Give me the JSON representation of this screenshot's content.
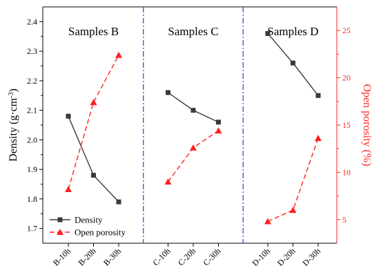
{
  "chart_data": {
    "type": "line",
    "categories": [
      "B-10h",
      "B-20h",
      "B-30h",
      "C-10h",
      "C-20h",
      "C-30h",
      "D-10h",
      "D-20h",
      "D-30h"
    ],
    "groups": [
      {
        "label": "Samples B",
        "categories": [
          "B-10h",
          "B-20h",
          "B-30h"
        ]
      },
      {
        "label": "Samples C",
        "categories": [
          "C-10h",
          "C-20h",
          "C-30h"
        ]
      },
      {
        "label": "Samples D",
        "categories": [
          "D-10h",
          "D-20h",
          "D-30h"
        ]
      }
    ],
    "series": [
      {
        "name": "Density",
        "axis": "left",
        "color": "#3a3a3a",
        "line_style": "solid",
        "marker": "square",
        "values": [
          2.08,
          1.88,
          1.79,
          2.16,
          2.1,
          2.06,
          2.36,
          2.26,
          2.15
        ]
      },
      {
        "name": "Open porosity",
        "axis": "right",
        "color": "#ff2020",
        "line_style": "dashed",
        "marker": "triangle",
        "values": [
          8.2,
          17.4,
          22.4,
          9.0,
          12.6,
          14.4,
          4.8,
          6.0,
          13.6
        ]
      }
    ],
    "y_left": {
      "label_main": "Density (g·cm",
      "label_sup": "-3",
      "label_end": ")",
      "ylim": [
        1.65,
        2.45
      ],
      "ticks": [
        "1.7",
        "1.8",
        "1.9",
        "2.0",
        "2.1",
        "2.2",
        "2.3",
        "2.4"
      ],
      "color": "#000000"
    },
    "y_right": {
      "label": "Open porosity (%)",
      "ylim": [
        2.5,
        27.5
      ],
      "ticks": [
        "5",
        "10",
        "15",
        "20",
        "25"
      ],
      "color": "#ff2020"
    },
    "separator_color": "#3b4bd6",
    "legend_position": "bottom-left",
    "grid": false
  }
}
